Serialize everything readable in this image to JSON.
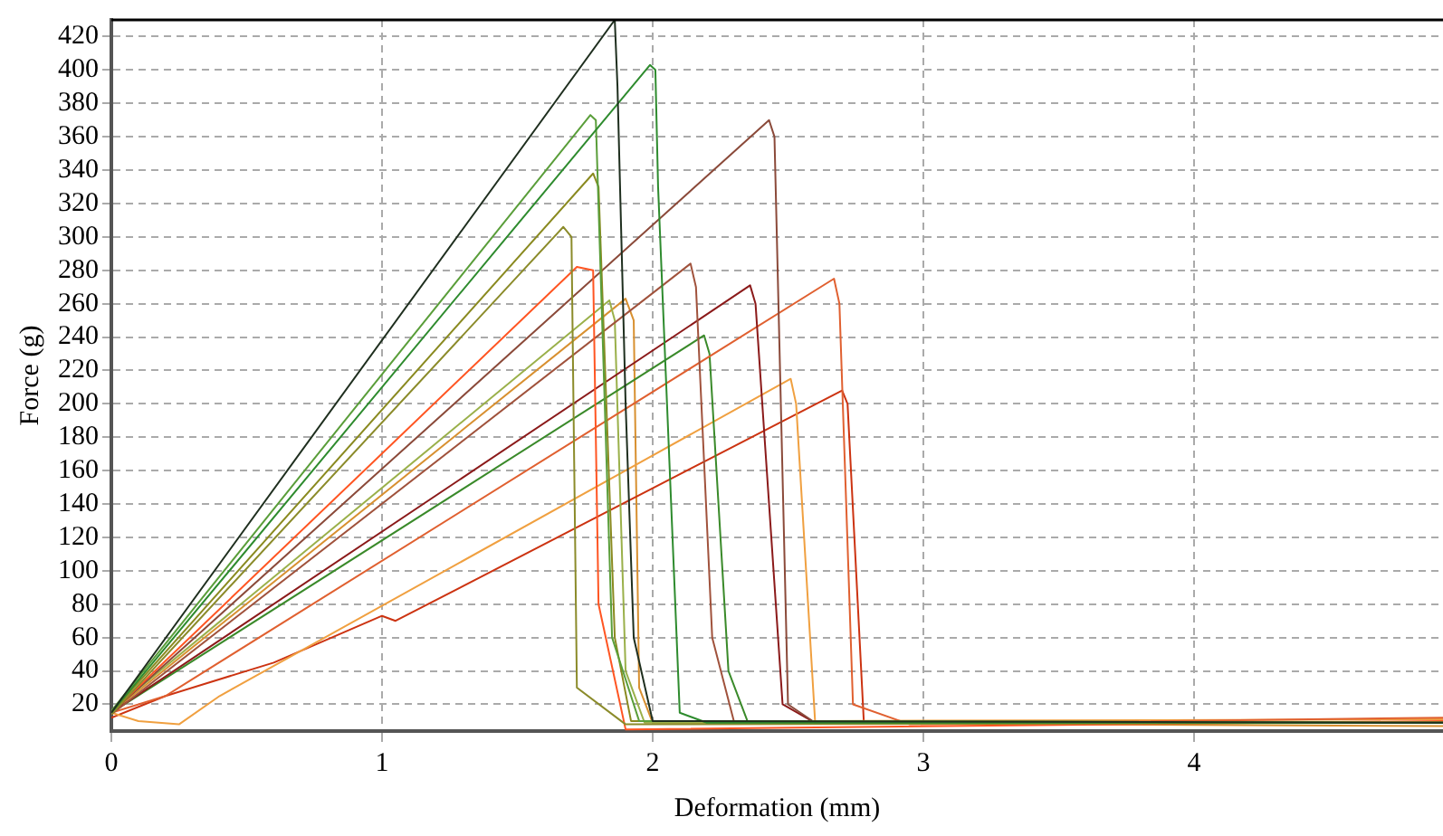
{
  "chart_data": {
    "type": "line",
    "xlabel": "Deformation (mm)",
    "ylabel": "Force (g)",
    "xlim": [
      0,
      4.92
    ],
    "xticks": [
      0,
      1,
      2,
      3,
      4
    ],
    "ylim": [
      4,
      430
    ],
    "yticks": [
      20,
      40,
      60,
      80,
      100,
      120,
      140,
      160,
      180,
      200,
      220,
      240,
      260,
      280,
      300,
      320,
      340,
      360,
      380,
      400,
      420
    ],
    "grid": true,
    "legend": false,
    "marker": "none",
    "line_style": "solid",
    "series": [
      {
        "color": "#1f2f1f",
        "x": [
          0,
          1.86,
          1.87,
          1.9,
          1.93,
          2.0,
          4.92
        ],
        "values": [
          15,
          430,
          390,
          200,
          60,
          10,
          9
        ]
      },
      {
        "color": "#2e8b2e",
        "x": [
          0,
          1.99,
          2.01,
          2.02,
          2.1,
          2.2,
          4.92
        ],
        "values": [
          15,
          403,
          400,
          330,
          15,
          9,
          9
        ]
      },
      {
        "color": "#5a9e3a",
        "x": [
          0,
          1.77,
          1.79,
          1.85,
          1.95,
          4.92
        ],
        "values": [
          16,
          373,
          370,
          60,
          10,
          9
        ]
      },
      {
        "color": "#8a8a20",
        "x": [
          0,
          1.78,
          1.8,
          1.86,
          1.92,
          4.92
        ],
        "values": [
          15,
          338,
          330,
          60,
          10,
          9
        ]
      },
      {
        "color": "#8b8b2a",
        "x": [
          0,
          1.67,
          1.7,
          1.72,
          1.9,
          4.92
        ],
        "values": [
          14,
          306,
          300,
          30,
          8,
          9
        ]
      },
      {
        "color": "#ff5522",
        "x": [
          0,
          1.72,
          1.78,
          1.8,
          1.9,
          4.92
        ],
        "values": [
          15,
          282,
          280,
          80,
          5,
          10
        ]
      },
      {
        "color": "#8b4a3a",
        "x": [
          0,
          2.43,
          2.45,
          2.5,
          2.6,
          4.92
        ],
        "values": [
          15,
          370,
          360,
          20,
          9,
          9
        ]
      },
      {
        "color": "#a0523c",
        "x": [
          0,
          2.14,
          2.16,
          2.22,
          2.3,
          4.92
        ],
        "values": [
          14,
          284,
          270,
          60,
          10,
          9
        ]
      },
      {
        "color": "#8b1a1a",
        "x": [
          0,
          2.36,
          2.38,
          2.48,
          2.6,
          4.92
        ],
        "values": [
          15,
          271,
          260,
          20,
          9,
          9
        ]
      },
      {
        "color": "#e06030",
        "x": [
          0,
          0.2,
          2.67,
          2.69,
          2.74,
          2.95,
          4.92
        ],
        "values": [
          15,
          25,
          275,
          260,
          20,
          8,
          12
        ]
      },
      {
        "color": "#3a8a2a",
        "x": [
          0,
          2.19,
          2.21,
          2.28,
          2.35,
          4.92
        ],
        "values": [
          15,
          241,
          230,
          40,
          10,
          9
        ]
      },
      {
        "color": "#9ab04a",
        "x": [
          0,
          1.84,
          1.86,
          1.9,
          1.97,
          4.92
        ],
        "values": [
          16,
          262,
          250,
          40,
          9,
          9
        ]
      },
      {
        "color": "#f0a040",
        "x": [
          0,
          0.1,
          0.25,
          0.4,
          2.51,
          2.53,
          2.6,
          4.92
        ],
        "values": [
          15,
          10,
          8,
          25,
          215,
          200,
          10,
          11
        ]
      },
      {
        "color": "#cc3311",
        "x": [
          0,
          0.2,
          0.6,
          1.0,
          1.05,
          2.7,
          2.72,
          2.78,
          4.92
        ],
        "values": [
          12,
          25,
          45,
          73,
          70,
          208,
          200,
          10,
          9
        ]
      },
      {
        "color": "#d89030",
        "x": [
          0,
          1.9,
          1.93,
          1.95,
          2.0,
          4.92
        ],
        "values": [
          15,
          263,
          250,
          30,
          9,
          7
        ]
      }
    ]
  }
}
